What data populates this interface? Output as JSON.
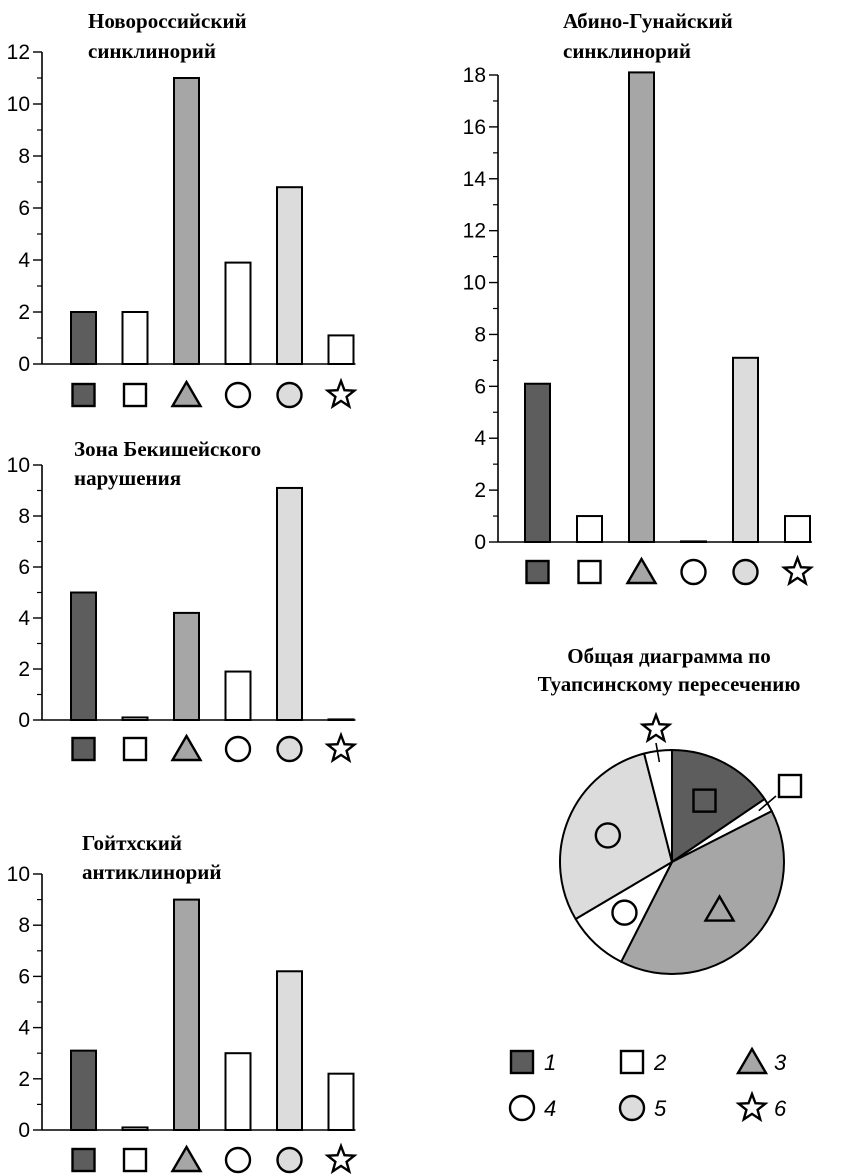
{
  "colors": {
    "c1": "#5d5d5d",
    "c2": "#ffffff",
    "c3": "#a6a6a6",
    "c4": "#ffffff",
    "c5": "#dcdcdc",
    "c6": "#ffffff"
  },
  "legend": {
    "items": [
      {
        "label": "1",
        "icon": "square-dark-icon"
      },
      {
        "label": "2",
        "icon": "square-white-icon"
      },
      {
        "label": "3",
        "icon": "triangle-gray-icon"
      },
      {
        "label": "4",
        "icon": "circle-white-icon"
      },
      {
        "label": "5",
        "icon": "circle-gray-icon"
      },
      {
        "label": "6",
        "icon": "star-icon"
      }
    ]
  },
  "chart_data": [
    {
      "type": "bar",
      "title": "Новороссийский\nсинклинорий",
      "categories": [
        "1",
        "2",
        "3",
        "4",
        "5",
        "6"
      ],
      "values": [
        2,
        2,
        11,
        3.9,
        6.8,
        1.1
      ],
      "yticks": [
        "0",
        "2",
        "4",
        "6",
        "8",
        "10",
        "12"
      ],
      "ylim": [
        0,
        12
      ],
      "grid": false
    },
    {
      "type": "bar",
      "title": "Зона Бекишейского\nнарушения",
      "categories": [
        "1",
        "2",
        "3",
        "4",
        "5",
        "6"
      ],
      "values": [
        5,
        0.1,
        4.2,
        1.9,
        9.1,
        0
      ],
      "yticks": [
        "0",
        "2",
        "4",
        "6",
        "8",
        "10"
      ],
      "ylim": [
        0,
        10
      ],
      "grid": false
    },
    {
      "type": "bar",
      "title": "Гойтхский\nантиклинорий",
      "categories": [
        "1",
        "2",
        "3",
        "4",
        "5",
        "6"
      ],
      "values": [
        3.1,
        0.1,
        9,
        3,
        6.2,
        2.2
      ],
      "yticks": [
        "0",
        "2",
        "4",
        "6",
        "8",
        "10"
      ],
      "ylim": [
        0,
        10
      ],
      "grid": false
    },
    {
      "type": "bar",
      "title": "Абино-Гунайский\nсинклинорий",
      "categories": [
        "1",
        "2",
        "3",
        "4",
        "5",
        "6"
      ],
      "values": [
        6.1,
        1,
        18.1,
        0,
        7.1,
        1
      ],
      "yticks": [
        "0",
        "2",
        "4",
        "6",
        "8",
        "10",
        "12",
        "14",
        "16",
        "18"
      ],
      "ylim": [
        0,
        18
      ],
      "grid": false
    },
    {
      "type": "pie",
      "title": "Общая диаграмма по\nТуапсинскому пересечению",
      "categories": [
        "1",
        "2",
        "3",
        "4",
        "5",
        "6"
      ],
      "values": [
        15.5,
        2,
        40,
        9,
        29.5,
        4
      ]
    }
  ]
}
